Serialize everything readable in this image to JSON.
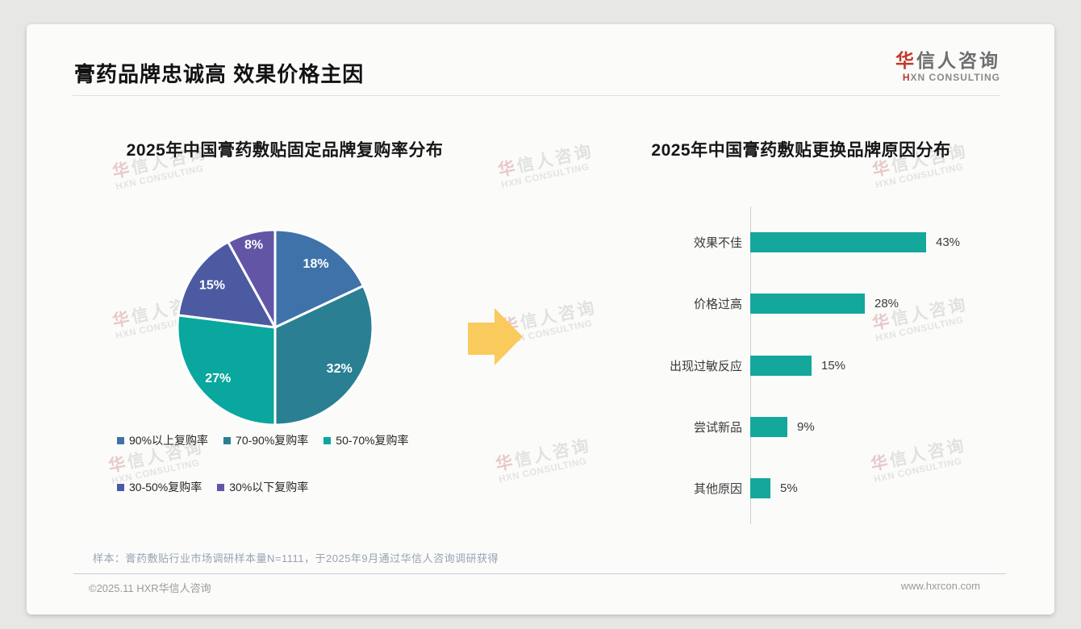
{
  "page": {
    "title": "膏药品牌忠诚高 效果价格主因",
    "logo": {
      "cn_accent": "华",
      "cn_rest": "信人咨询",
      "en_accent": "H",
      "en_rest": "XN CONSULTING"
    },
    "watermark": {
      "line1_accent": "华",
      "line1_rest": "信人咨询",
      "line2": "HXN CONSULTING"
    },
    "footnote": "样本：膏药敷贴行业市场调研样本量N=1111，于2025年9月通过华信人咨询调研获得",
    "copyright": "©2025.11 HXR华信人咨询",
    "website": "www.hxrcon.com"
  },
  "arrow": {
    "color": "#F9CB5C",
    "direction": "right"
  },
  "chart_data": [
    {
      "type": "pie",
      "title": "2025年中国膏药敷贴固定品牌复购率分布",
      "labels": [
        "90%以上复购率",
        "70-90%复购率",
        "50-70%复购率",
        "30-50%复购率",
        "30%以下复购率"
      ],
      "values": [
        18,
        32,
        27,
        15,
        8
      ],
      "value_labels": [
        "18%",
        "32%",
        "27%",
        "15%",
        "8%"
      ],
      "colors": [
        "#3F72A8",
        "#2A7F93",
        "#09A79D",
        "#4C5AA2",
        "#6355A6"
      ],
      "start_angle_deg": 0,
      "direction": "clockwise",
      "legend_position": "bottom",
      "slice_border_color": "#FFFFFF"
    },
    {
      "type": "bar",
      "orientation": "horizontal",
      "title": "2025年中国膏药敷贴更换品牌原因分布",
      "categories": [
        "效果不佳",
        "价格过高",
        "出现过敏反应",
        "尝试新品",
        "其他原因"
      ],
      "values": [
        43,
        28,
        15,
        9,
        5
      ],
      "value_labels": [
        "43%",
        "28%",
        "15%",
        "9%",
        "5%"
      ],
      "bar_color": "#14A79C",
      "xlim": [
        0,
        50
      ],
      "grid": false,
      "value_label_position": "right-of-bar"
    }
  ]
}
